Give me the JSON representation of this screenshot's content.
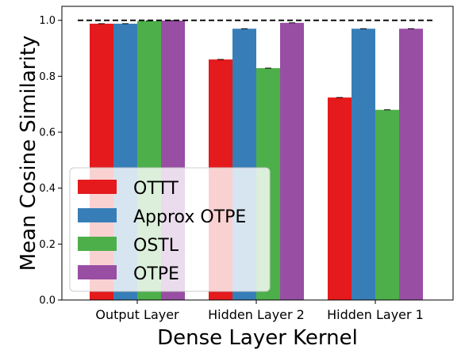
{
  "chart_data": {
    "type": "bar",
    "title": "",
    "xlabel": "Dense Layer Kernel",
    "ylabel": "Mean Cosine Similarity",
    "categories": [
      "Output Layer",
      "Hidden Layer 2",
      "Hidden Layer 1"
    ],
    "ylim": [
      0,
      1.05
    ],
    "yticks": [
      "0.0",
      "0.2",
      "0.4",
      "0.6",
      "0.8",
      "1.0"
    ],
    "grid": false,
    "legend_position": "lower-left",
    "reference_line": {
      "y": 1.0,
      "style": "dashed",
      "color": "#000000"
    },
    "series": [
      {
        "name": "OTTT",
        "color": "#e41a1c",
        "values": [
          0.988,
          0.86,
          0.724
        ]
      },
      {
        "name": "Approx OTPE",
        "color": "#377eb8",
        "values": [
          0.988,
          0.97,
          0.97
        ]
      },
      {
        "name": "OSTL",
        "color": "#4daf4a",
        "values": [
          0.998,
          0.829,
          0.68
        ]
      },
      {
        "name": "OTPE",
        "color": "#984ea3",
        "values": [
          0.999,
          0.991,
          0.97
        ]
      }
    ]
  }
}
